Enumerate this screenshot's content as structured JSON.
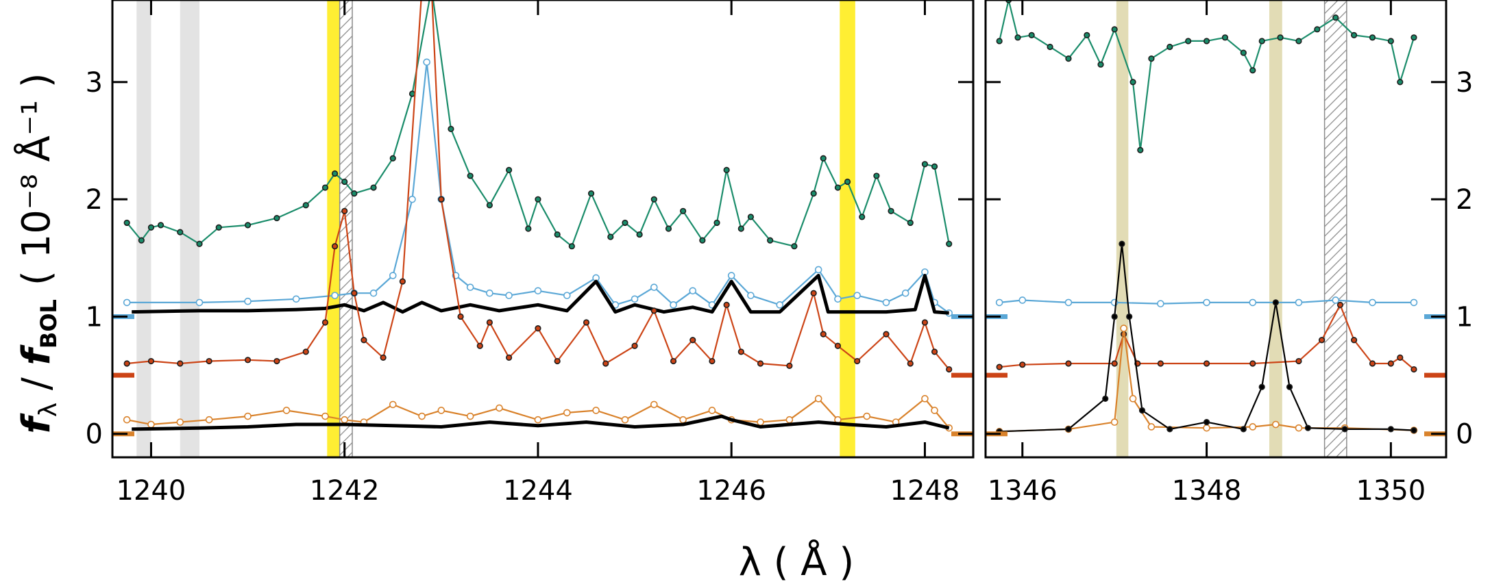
{
  "chart_data": [
    {
      "type": "line",
      "panel": "left",
      "xlim": [
        1239.6,
        1248.5
      ],
      "ylim": [
        -0.2,
        3.7
      ],
      "xticks": [
        1240,
        1242,
        1244,
        1246,
        1248
      ],
      "xtick_labels": [
        "1240",
        "1242",
        "1244",
        "1246",
        "1248"
      ],
      "yticks": [
        0,
        1,
        2,
        3
      ],
      "ytick_labels": [
        "0",
        "1",
        "2",
        "3"
      ],
      "xlabel": "λ  ( Å )",
      "ylabel": "f λ / f BOL  ( 10⁻⁸ Å⁻¹ )",
      "grid": false,
      "series": [
        {
          "color": "#1a8c6a",
          "marker": "filled-dot",
          "x": [
            1239.75,
            1239.9,
            1240.0,
            1240.1,
            1240.3,
            1240.5,
            1240.7,
            1241.0,
            1241.3,
            1241.6,
            1241.8,
            1241.9,
            1242.0,
            1242.1,
            1242.3,
            1242.5,
            1242.7,
            1242.9,
            1243.1,
            1243.3,
            1243.5,
            1243.7,
            1243.9,
            1244.0,
            1244.2,
            1244.35,
            1244.55,
            1244.75,
            1244.9,
            1245.05,
            1245.2,
            1245.35,
            1245.5,
            1245.7,
            1245.85,
            1245.95,
            1246.1,
            1246.2,
            1246.4,
            1246.65,
            1246.85,
            1246.95,
            1247.1,
            1247.2,
            1247.35,
            1247.5,
            1247.65,
            1247.85,
            1248.0,
            1248.1,
            1248.25
          ],
          "y": [
            1.8,
            1.65,
            1.76,
            1.78,
            1.72,
            1.62,
            1.76,
            1.78,
            1.84,
            1.95,
            2.1,
            2.22,
            2.15,
            2.05,
            2.1,
            2.35,
            2.9,
            3.8,
            2.6,
            2.2,
            1.95,
            2.25,
            1.75,
            2.0,
            1.7,
            1.6,
            2.05,
            1.68,
            1.8,
            1.7,
            2.0,
            1.75,
            1.9,
            1.65,
            1.8,
            2.25,
            1.75,
            1.85,
            1.65,
            1.6,
            2.05,
            2.35,
            2.1,
            2.15,
            1.85,
            2.2,
            1.9,
            1.8,
            2.3,
            2.28,
            1.62
          ]
        },
        {
          "color": "#5aa7d6",
          "marker": "open-circle",
          "x": [
            1239.75,
            1240.5,
            1241.0,
            1241.5,
            1241.9,
            1242.1,
            1242.3,
            1242.5,
            1242.7,
            1242.85,
            1243.0,
            1243.15,
            1243.3,
            1243.5,
            1243.7,
            1244.0,
            1244.3,
            1244.6,
            1244.8,
            1245.0,
            1245.2,
            1245.4,
            1245.6,
            1245.8,
            1246.0,
            1246.2,
            1246.5,
            1246.9,
            1247.1,
            1247.3,
            1247.6,
            1247.8,
            1248.0,
            1248.1,
            1248.25
          ],
          "y": [
            1.12,
            1.12,
            1.13,
            1.15,
            1.18,
            1.2,
            1.2,
            1.35,
            2.0,
            3.17,
            2.0,
            1.35,
            1.25,
            1.2,
            1.18,
            1.22,
            1.18,
            1.33,
            1.1,
            1.15,
            1.25,
            1.1,
            1.22,
            1.1,
            1.35,
            1.18,
            1.1,
            1.4,
            1.15,
            1.18,
            1.12,
            1.2,
            1.38,
            1.12,
            1.03
          ]
        },
        {
          "color": "#000000",
          "marker": "none",
          "x": [
            1239.8,
            1240.5,
            1241.0,
            1241.5,
            1241.8,
            1242.0,
            1242.2,
            1242.4,
            1242.6,
            1242.8,
            1243.0,
            1243.3,
            1243.6,
            1244.0,
            1244.3,
            1244.6,
            1244.8,
            1245.0,
            1245.3,
            1245.6,
            1245.8,
            1246.0,
            1246.2,
            1246.5,
            1246.9,
            1247.0,
            1247.3,
            1247.6,
            1247.9,
            1248.0,
            1248.1,
            1248.25
          ],
          "y": [
            1.04,
            1.05,
            1.05,
            1.06,
            1.07,
            1.1,
            1.05,
            1.12,
            1.04,
            1.12,
            1.05,
            1.1,
            1.05,
            1.1,
            1.05,
            1.3,
            1.04,
            1.1,
            1.04,
            1.08,
            1.04,
            1.3,
            1.04,
            1.04,
            1.35,
            1.04,
            1.04,
            1.04,
            1.06,
            1.35,
            1.04,
            1.03
          ]
        },
        {
          "color": "#cc4416",
          "marker": "filled-dot",
          "x": [
            1239.75,
            1240.0,
            1240.3,
            1240.6,
            1241.0,
            1241.3,
            1241.6,
            1241.8,
            1241.9,
            1242.0,
            1242.1,
            1242.2,
            1242.4,
            1242.6,
            1242.8,
            1242.9,
            1243.0,
            1243.2,
            1243.4,
            1243.5,
            1243.7,
            1244.0,
            1244.2,
            1244.5,
            1244.7,
            1245.0,
            1245.2,
            1245.4,
            1245.6,
            1245.8,
            1245.95,
            1246.1,
            1246.3,
            1246.6,
            1246.85,
            1246.95,
            1247.1,
            1247.3,
            1247.6,
            1247.85,
            1248.0,
            1248.1,
            1248.25
          ],
          "y": [
            0.6,
            0.62,
            0.6,
            0.62,
            0.63,
            0.62,
            0.7,
            0.95,
            1.6,
            1.9,
            1.2,
            0.8,
            0.65,
            1.3,
            3.8,
            3.8,
            2.0,
            1.0,
            0.75,
            0.95,
            0.65,
            0.9,
            0.62,
            0.95,
            0.6,
            0.75,
            1.05,
            0.62,
            0.8,
            0.62,
            1.1,
            0.7,
            0.6,
            0.58,
            1.2,
            0.85,
            0.75,
            0.62,
            0.85,
            0.6,
            0.95,
            0.7,
            0.55
          ]
        },
        {
          "color": "#d9822b",
          "marker": "open-circle",
          "x": [
            1239.75,
            1240.0,
            1240.3,
            1240.6,
            1241.0,
            1241.4,
            1241.8,
            1242.0,
            1242.2,
            1242.5,
            1242.8,
            1243.0,
            1243.3,
            1243.6,
            1244.0,
            1244.3,
            1244.6,
            1244.9,
            1245.2,
            1245.5,
            1245.8,
            1246.0,
            1246.3,
            1246.6,
            1246.9,
            1247.1,
            1247.4,
            1247.7,
            1248.0,
            1248.1,
            1248.25
          ],
          "y": [
            0.12,
            0.08,
            0.1,
            0.12,
            0.15,
            0.2,
            0.15,
            0.12,
            0.1,
            0.25,
            0.15,
            0.2,
            0.15,
            0.22,
            0.12,
            0.18,
            0.2,
            0.12,
            0.25,
            0.12,
            0.2,
            0.12,
            0.1,
            0.12,
            0.3,
            0.12,
            0.15,
            0.1,
            0.3,
            0.2,
            0.05
          ]
        },
        {
          "color": "#000000",
          "marker": "none",
          "x": [
            1239.8,
            1240.5,
            1241.0,
            1241.5,
            1242.0,
            1242.5,
            1243.0,
            1243.5,
            1244.0,
            1244.5,
            1245.0,
            1245.5,
            1245.9,
            1246.0,
            1246.3,
            1246.9,
            1247.2,
            1247.6,
            1248.0,
            1248.25
          ],
          "y": [
            0.04,
            0.05,
            0.06,
            0.08,
            0.08,
            0.07,
            0.06,
            0.1,
            0.07,
            0.1,
            0.06,
            0.08,
            0.15,
            0.12,
            0.06,
            0.1,
            0.08,
            0.06,
            0.1,
            0.05
          ]
        }
      ],
      "bands": [
        {
          "x0": 1239.85,
          "x1": 1240.0,
          "color": "#e3e3e3",
          "style": "solid"
        },
        {
          "x0": 1240.3,
          "x1": 1240.5,
          "color": "#e3e3e3",
          "style": "solid"
        },
        {
          "x0": 1241.82,
          "x1": 1241.95,
          "color": "#ffee33",
          "style": "solid"
        },
        {
          "x0": 1241.95,
          "x1": 1242.08,
          "color": "#9a9a9a",
          "style": "hatched"
        },
        {
          "x0": 1247.12,
          "x1": 1247.28,
          "color": "#ffee33",
          "style": "solid"
        }
      ],
      "right_markers": [
        {
          "y": 1.0,
          "color": "#5aa7d6"
        },
        {
          "y": 0.5,
          "color": "#cc4416"
        },
        {
          "y": 0.0,
          "color": "#d9822b"
        }
      ]
    },
    {
      "type": "line",
      "panel": "right",
      "xlim": [
        1345.6,
        1350.6
      ],
      "ylim": [
        -0.2,
        3.7
      ],
      "xticks": [
        1346,
        1348,
        1350
      ],
      "xtick_labels": [
        "1346",
        "1348",
        "1350"
      ],
      "yticks": [
        0,
        1,
        2,
        3
      ],
      "ytick_labels": [
        "0",
        "1",
        "2",
        "3"
      ],
      "grid": false,
      "series": [
        {
          "color": "#1a8c6a",
          "marker": "filled-dot",
          "x": [
            1345.75,
            1345.85,
            1345.95,
            1346.1,
            1346.3,
            1346.5,
            1346.7,
            1346.85,
            1347.0,
            1347.2,
            1347.28,
            1347.4,
            1347.6,
            1347.8,
            1348.0,
            1348.2,
            1348.4,
            1348.5,
            1348.6,
            1348.8,
            1349.0,
            1349.2,
            1349.4,
            1349.6,
            1349.8,
            1350.0,
            1350.1,
            1350.25
          ],
          "y": [
            3.35,
            3.7,
            3.38,
            3.4,
            3.3,
            3.2,
            3.4,
            3.15,
            3.45,
            3.0,
            2.42,
            3.2,
            3.3,
            3.35,
            3.35,
            3.38,
            3.25,
            3.1,
            3.35,
            3.38,
            3.35,
            3.45,
            3.55,
            3.4,
            3.38,
            3.35,
            3.0,
            3.38
          ]
        },
        {
          "color": "#5aa7d6",
          "marker": "open-circle",
          "x": [
            1345.75,
            1346.0,
            1346.5,
            1347.0,
            1347.5,
            1348.0,
            1348.5,
            1349.0,
            1349.4,
            1349.8,
            1350.25
          ],
          "y": [
            1.12,
            1.14,
            1.12,
            1.12,
            1.11,
            1.12,
            1.12,
            1.12,
            1.14,
            1.12,
            1.12
          ]
        },
        {
          "color": "#cc4416",
          "marker": "filled-dot",
          "x": [
            1345.75,
            1346.0,
            1346.5,
            1347.0,
            1347.1,
            1347.25,
            1347.5,
            1348.0,
            1348.5,
            1349.0,
            1349.25,
            1349.45,
            1349.6,
            1349.8,
            1350.0,
            1350.1,
            1350.25
          ],
          "y": [
            0.57,
            0.59,
            0.6,
            0.6,
            0.85,
            0.6,
            0.6,
            0.6,
            0.6,
            0.62,
            0.8,
            1.1,
            0.8,
            0.6,
            0.6,
            0.65,
            0.55
          ]
        },
        {
          "color": "#d9822b",
          "marker": "open-circle",
          "x": [
            1345.75,
            1346.5,
            1347.0,
            1347.1,
            1347.2,
            1347.4,
            1348.0,
            1348.5,
            1348.75,
            1349.0,
            1349.5,
            1350.25
          ],
          "y": [
            0.02,
            0.04,
            0.1,
            0.9,
            0.3,
            0.06,
            0.05,
            0.06,
            0.08,
            0.05,
            0.05,
            0.03
          ]
        },
        {
          "color": "#000000",
          "marker": "filled-dot",
          "x": [
            1345.75,
            1346.5,
            1346.9,
            1347.0,
            1347.08,
            1347.16,
            1347.3,
            1347.6,
            1348.0,
            1348.4,
            1348.6,
            1348.75,
            1348.9,
            1349.1,
            1349.5,
            1350.0,
            1350.25
          ],
          "y": [
            0.02,
            0.04,
            0.3,
            1.0,
            1.62,
            1.0,
            0.2,
            0.04,
            0.1,
            0.04,
            0.4,
            1.12,
            0.4,
            0.05,
            0.04,
            0.04,
            0.03
          ]
        }
      ],
      "bands": [
        {
          "x0": 1347.02,
          "x1": 1347.15,
          "color": "#e2dcb5",
          "style": "solid"
        },
        {
          "x0": 1348.68,
          "x1": 1348.82,
          "color": "#e2dcb5",
          "style": "solid"
        },
        {
          "x0": 1349.28,
          "x1": 1349.52,
          "color": "#9a9a9a",
          "style": "hatched"
        }
      ],
      "right_markers": [
        {
          "y": 1.0,
          "color": "#5aa7d6"
        },
        {
          "y": 0.5,
          "color": "#cc4416"
        },
        {
          "y": 0.0,
          "color": "#d9822b"
        }
      ]
    }
  ],
  "labels": {
    "xlabel": "λ  ( Å )",
    "ylabel_f": "f",
    "ylabel_lambda": "λ",
    "ylabel_slash": " / ",
    "ylabel_f2": "f",
    "ylabel_bol": "BOL",
    "ylabel_units": "( 10⁻⁸ Å⁻¹ )"
  }
}
